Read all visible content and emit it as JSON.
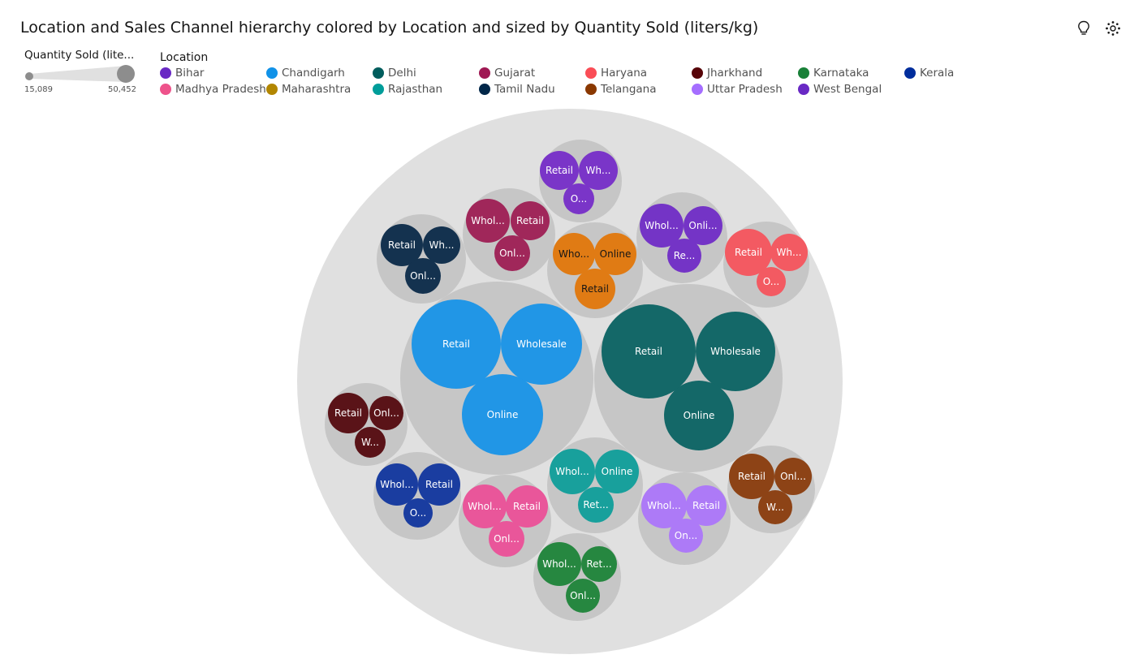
{
  "title": "Location and Sales Channel hierarchy colored by Location and sized by Quantity Sold (liters/kg)",
  "toolbar": {
    "icons": [
      "lightbulb-icon",
      "settings-icon"
    ]
  },
  "size_legend": {
    "title": "Quantity Sold (lite...",
    "min_label": "15,089",
    "max_label": "50,452"
  },
  "location_legend": {
    "title": "Location",
    "items": [
      {
        "label": "Bihar",
        "color": "#6929c4"
      },
      {
        "label": "Chandigarh",
        "color": "#1192e8"
      },
      {
        "label": "Delhi",
        "color": "#005d5d"
      },
      {
        "label": "Gujarat",
        "color": "#9f1853"
      },
      {
        "label": "Haryana",
        "color": "#fa4d56"
      },
      {
        "label": "Jharkhand",
        "color": "#570408"
      },
      {
        "label": "Karnataka",
        "color": "#198038"
      },
      {
        "label": "Kerala",
        "color": "#002d9c"
      },
      {
        "label": "Madhya Pradesh",
        "color": "#ee538b"
      },
      {
        "label": "Maharashtra",
        "color": "#b28600"
      },
      {
        "label": "Rajasthan",
        "color": "#009d9a"
      },
      {
        "label": "Tamil Nadu",
        "color": "#012749"
      },
      {
        "label": "Telangana",
        "color": "#8a3800"
      },
      {
        "label": "Uttar Pradesh",
        "color": "#a56eff"
      },
      {
        "label": "West Bengal",
        "color": "#6929c4"
      }
    ]
  },
  "chart_data": {
    "type": "packed-bubble",
    "hierarchy": [
      "Location",
      "Sales Channel"
    ],
    "size_measure": "Quantity Sold (liters/kg)",
    "size_range": [
      15089,
      50452
    ],
    "groups": [
      {
        "location": "Chandigarh",
        "color": "#2196e6",
        "children": [
          {
            "label": "Retail",
            "value": 50452
          },
          {
            "label": "Wholesale",
            "value": 45000
          },
          {
            "label": "Online",
            "value": 44000
          }
        ]
      },
      {
        "location": "Delhi",
        "color": "#146868",
        "children": [
          {
            "label": "Retail",
            "value": 49000
          },
          {
            "label": "Wholesale",
            "value": 43000
          },
          {
            "label": "Online",
            "value": 34000
          }
        ]
      },
      {
        "location": "Bihar",
        "color": "#7a35c8",
        "children": [
          {
            "label": "Retail",
            "value": 20000
          },
          {
            "label": "Wh...",
            "value": 20000
          },
          {
            "label": "O...",
            "value": 15089
          }
        ]
      },
      {
        "location": "Gujarat",
        "color": "#a0275a",
        "children": [
          {
            "label": "Whol...",
            "value": 26000
          },
          {
            "label": "Retail",
            "value": 23000
          },
          {
            "label": "Onl...",
            "value": 21000
          }
        ]
      },
      {
        "location": "Tamil Nadu",
        "color": "#14324f",
        "children": [
          {
            "label": "Retail",
            "value": 24000
          },
          {
            "label": "Wh...",
            "value": 21000
          },
          {
            "label": "Onl...",
            "value": 20000
          }
        ]
      },
      {
        "location": "Maharashtra",
        "color": "#e07b14",
        "children": [
          {
            "label": "Who...",
            "value": 23000
          },
          {
            "label": "Online",
            "value": 23000
          },
          {
            "label": "Retail",
            "value": 23000
          }
        ]
      },
      {
        "location": "West Bengal",
        "color": "#7434c6",
        "children": [
          {
            "label": "Whol...",
            "value": 25000
          },
          {
            "label": "Onli...",
            "value": 22000
          },
          {
            "label": "Re...",
            "value": 19000
          }
        ]
      },
      {
        "location": "Haryana",
        "color": "#f35a62",
        "children": [
          {
            "label": "Retail",
            "value": 24000
          },
          {
            "label": "Wh...",
            "value": 20000
          },
          {
            "label": "O...",
            "value": 15500
          }
        ]
      },
      {
        "location": "Jharkhand",
        "color": "#5a1318",
        "children": [
          {
            "label": "Retail",
            "value": 22000
          },
          {
            "label": "Onl...",
            "value": 19000
          },
          {
            "label": "W...",
            "value": 16500
          }
        ]
      },
      {
        "location": "Kerala",
        "color": "#1a3da0",
        "children": [
          {
            "label": "Whol...",
            "value": 24000
          },
          {
            "label": "Retail",
            "value": 24000
          },
          {
            "label": "O...",
            "value": 15500
          }
        ]
      },
      {
        "location": "Madhya Pradesh",
        "color": "#e9569a",
        "children": [
          {
            "label": "Whol...",
            "value": 25000
          },
          {
            "label": "Retail",
            "value": 24000
          },
          {
            "label": "Onl...",
            "value": 21000
          }
        ]
      },
      {
        "location": "Rajasthan",
        "color": "#18a09c",
        "children": [
          {
            "label": "Whol...",
            "value": 24000
          },
          {
            "label": "Online",
            "value": 25000
          },
          {
            "label": "Ret...",
            "value": 20000
          }
        ]
      },
      {
        "location": "Uttar Pradesh",
        "color": "#ad7af7",
        "children": [
          {
            "label": "Whol...",
            "value": 24000
          },
          {
            "label": "Retail",
            "value": 24000
          },
          {
            "label": "On...",
            "value": 20000
          }
        ]
      },
      {
        "location": "Telangana",
        "color": "#8d4316",
        "children": [
          {
            "label": "Retail",
            "value": 25000
          },
          {
            "label": "Onl...",
            "value": 21000
          },
          {
            "label": "W...",
            "value": 20000
          }
        ]
      },
      {
        "location": "Karnataka",
        "color": "#268740",
        "children": [
          {
            "label": "Whol...",
            "value": 25000
          },
          {
            "label": "Ret...",
            "value": 21000
          },
          {
            "label": "Onl...",
            "value": 20000
          }
        ]
      }
    ]
  }
}
